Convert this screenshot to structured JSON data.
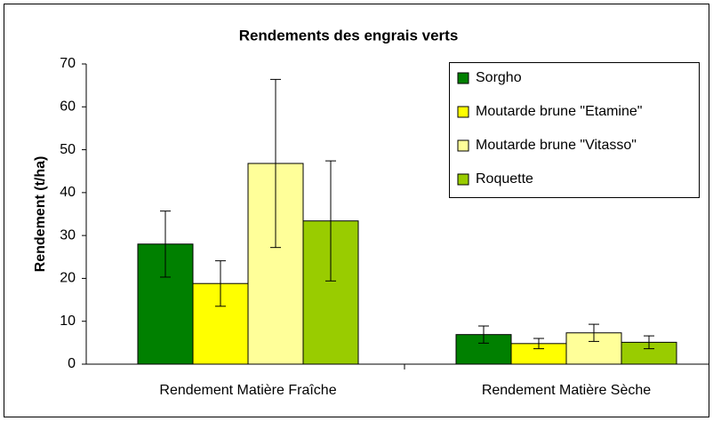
{
  "chart_data": {
    "type": "bar",
    "title": "Rendements des engrais verts",
    "y_label": "Rendement (t/ha)",
    "categories": [
      "Rendement Matière Fraîche",
      "Rendement Matière Sèche"
    ],
    "series": [
      {
        "name": "Sorgho",
        "color": "#008000",
        "values": [
          28,
          6.9
        ],
        "errors": [
          7.7,
          2
        ]
      },
      {
        "name": "Moutarde brune \"Etamine\"",
        "color": "#ffff00",
        "values": [
          18.8,
          4.8
        ],
        "errors": [
          5.3,
          1.2
        ]
      },
      {
        "name": "Moutarde brune \"Vitasso\"",
        "color": "#ffff99",
        "values": [
          46.8,
          7.3
        ],
        "errors": [
          19.6,
          2
        ]
      },
      {
        "name": "Roquette",
        "color": "#99cc00",
        "values": [
          33.4,
          5.1
        ],
        "errors": [
          14,
          1.5
        ]
      }
    ],
    "ylim": [
      0,
      70
    ],
    "yticks": [
      0,
      10,
      20,
      30,
      40,
      50,
      60,
      70
    ],
    "grid": false
  }
}
